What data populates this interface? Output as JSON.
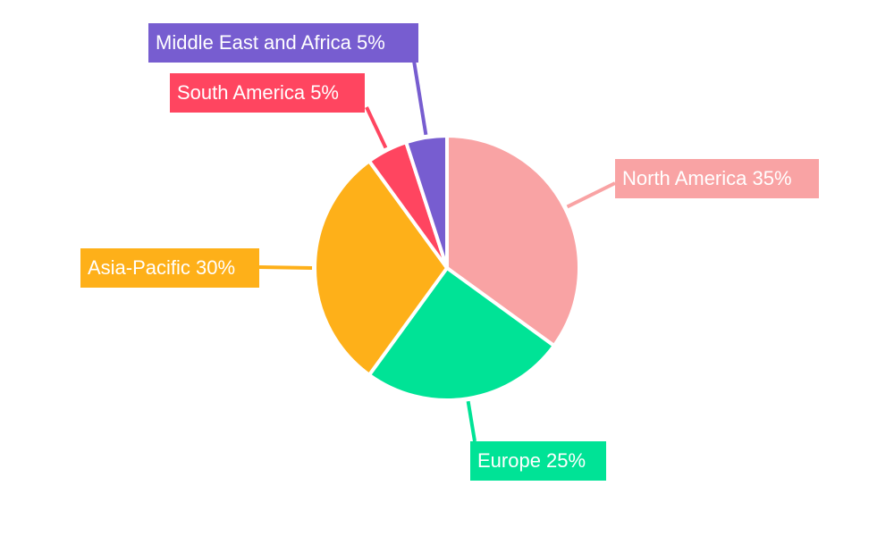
{
  "chart_data": {
    "type": "pie",
    "categories": [
      "North America",
      "Europe",
      "Asia-Pacific",
      "South America",
      "Middle East and Africa"
    ],
    "values": [
      35,
      25,
      30,
      5,
      5
    ],
    "labels": [
      "North America 35%",
      "Europe 25%",
      "Asia-Pacific 30%",
      "South America 5%",
      "Middle East and Africa 5%"
    ],
    "colors": [
      "#f9a3a4",
      "#00e396",
      "#feb019",
      "#ff4560",
      "#775dd0"
    ],
    "start_angle": "top, clockwise"
  }
}
